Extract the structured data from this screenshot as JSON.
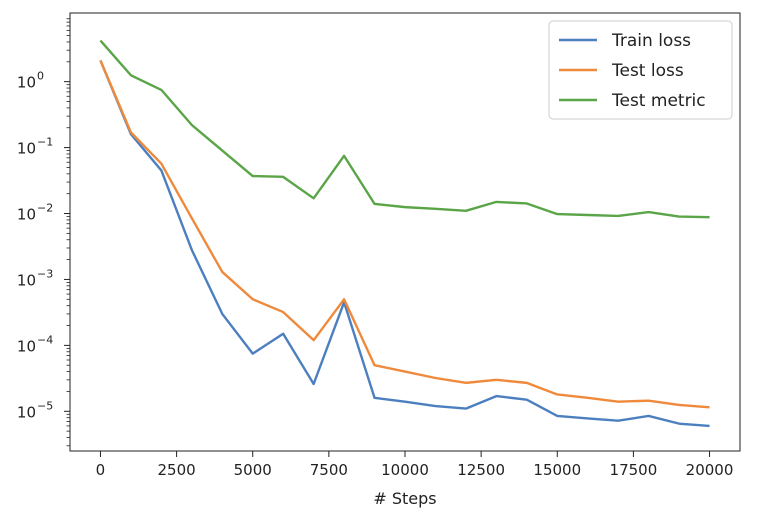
{
  "chart_data": {
    "type": "line",
    "title": "",
    "xlabel": "# Steps",
    "ylabel": "",
    "yscale": "log",
    "xlim": [
      -1000,
      21000
    ],
    "ylim": [
      2.5e-06,
      11
    ],
    "grid": false,
    "legend_position": "top-right",
    "x_ticks": [
      {
        "value": 0,
        "label": "0"
      },
      {
        "value": 2500,
        "label": "2500"
      },
      {
        "value": 5000,
        "label": "5000"
      },
      {
        "value": 7500,
        "label": "7500"
      },
      {
        "value": 10000,
        "label": "10000"
      },
      {
        "value": 12500,
        "label": "12500"
      },
      {
        "value": 15000,
        "label": "15000"
      },
      {
        "value": 17500,
        "label": "17500"
      },
      {
        "value": 20000,
        "label": "20000"
      }
    ],
    "y_ticks": [
      {
        "value": 1,
        "base": "10",
        "exp": "0"
      },
      {
        "value": 0.1,
        "base": "10",
        "exp": "−1"
      },
      {
        "value": 0.01,
        "base": "10",
        "exp": "−2"
      },
      {
        "value": 0.001,
        "base": "10",
        "exp": "−3"
      },
      {
        "value": 0.0001,
        "base": "10",
        "exp": "−4"
      },
      {
        "value": 1e-05,
        "base": "10",
        "exp": "−5"
      }
    ],
    "x": [
      0,
      1000,
      2000,
      3000,
      4000,
      5000,
      6000,
      7000,
      8000,
      9000,
      10000,
      11000,
      12000,
      13000,
      14000,
      15000,
      16000,
      17000,
      18000,
      19000,
      20000
    ],
    "series": [
      {
        "name": "Train loss",
        "color": "#4c7fbf",
        "values": [
          2.1,
          0.16,
          0.045,
          0.0028,
          0.0003,
          7.5e-05,
          0.00015,
          2.6e-05,
          0.00045,
          1.6e-05,
          1.4e-05,
          1.2e-05,
          1.1e-05,
          1.7e-05,
          1.5e-05,
          8.5e-06,
          7.8e-06,
          7.2e-06,
          8.5e-06,
          6.5e-06,
          6e-06
        ]
      },
      {
        "name": "Test loss",
        "color": "#ef8a3c",
        "values": [
          2.1,
          0.17,
          0.057,
          0.0085,
          0.0013,
          0.0005,
          0.00032,
          0.00012,
          0.0005,
          5e-05,
          4e-05,
          3.2e-05,
          2.7e-05,
          3e-05,
          2.7e-05,
          1.8e-05,
          1.6e-05,
          1.4e-05,
          1.45e-05,
          1.25e-05,
          1.15e-05
        ]
      },
      {
        "name": "Test metric",
        "color": "#5aa548",
        "values": [
          4.2,
          1.25,
          0.75,
          0.22,
          0.09,
          0.037,
          0.036,
          0.017,
          0.075,
          0.014,
          0.0125,
          0.0118,
          0.011,
          0.015,
          0.0142,
          0.0098,
          0.0095,
          0.0092,
          0.0105,
          0.009,
          0.0088
        ]
      }
    ]
  }
}
